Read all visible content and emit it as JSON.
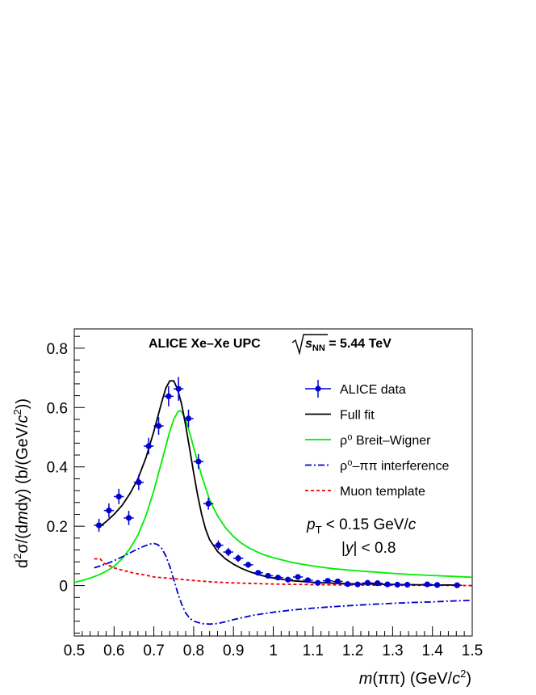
{
  "chart_data": {
    "type": "line",
    "title": {
      "main": "ALICE Xe–Xe UPC",
      "energy_prefix": "s",
      "energy_sub": "NN",
      "energy_value": " = 5.44 TeV"
    },
    "ylabel": {
      "d": "d",
      "sup2": "2",
      "sigma": "σ/(d",
      "m": "m",
      "dy": "dy) (b/(GeV/",
      "c": "c",
      "sup2b": "2",
      "close": "))"
    },
    "xlabel": {
      "m": "m",
      "pipi": "(ππ) (GeV/",
      "c": "c",
      "sup2": "2",
      "close": ")"
    },
    "xlim": [
      0.5,
      1.5
    ],
    "ylim": [
      -0.17,
      0.865
    ],
    "xticks": [
      0.5,
      0.6,
      0.7,
      0.8,
      0.9,
      1.0,
      1.1,
      1.2,
      1.3,
      1.4,
      1.5
    ],
    "xtick_labels": [
      "0.5",
      "0.6",
      "0.7",
      "0.8",
      "0.9",
      "1",
      "1.1",
      "1.2",
      "1.3",
      "1.4",
      "1.5"
    ],
    "yticks": [
      0,
      0.2,
      0.4,
      0.6,
      0.8
    ],
    "ytick_labels": [
      "0",
      "0.2",
      "0.4",
      "0.6",
      "0.8"
    ],
    "legend_position": "top-right",
    "legend": [
      {
        "label": "ALICE data",
        "style": "marker",
        "color": "#0000cc"
      },
      {
        "label": "Full fit",
        "style": "solid",
        "color": "#000000"
      },
      {
        "label": "ρ⁰ Breit–Wigner",
        "style": "solid",
        "color": "#00ee00"
      },
      {
        "label": "ρ⁰–ππ interference",
        "style": "dashdot",
        "color": "#0000cc"
      },
      {
        "label": "Muon template",
        "style": "dashed",
        "color": "#ee0000"
      }
    ],
    "annotations": {
      "pt_p": "p",
      "pt_sub": "T",
      "pt_rest": " < 0.15 GeV/",
      "pt_c": "c",
      "y_bar1": "|",
      "y_var": "y",
      "y_rest": "| < 0.8"
    },
    "data_points": [
      {
        "x": 0.562,
        "y": 0.203,
        "err": 0.022
      },
      {
        "x": 0.587,
        "y": 0.253,
        "err": 0.024
      },
      {
        "x": 0.612,
        "y": 0.3,
        "err": 0.026
      },
      {
        "x": 0.637,
        "y": 0.228,
        "err": 0.024
      },
      {
        "x": 0.662,
        "y": 0.348,
        "err": 0.026
      },
      {
        "x": 0.687,
        "y": 0.47,
        "err": 0.028
      },
      {
        "x": 0.712,
        "y": 0.538,
        "err": 0.03
      },
      {
        "x": 0.737,
        "y": 0.638,
        "err": 0.034
      },
      {
        "x": 0.762,
        "y": 0.663,
        "err": 0.04
      },
      {
        "x": 0.787,
        "y": 0.563,
        "err": 0.03
      },
      {
        "x": 0.812,
        "y": 0.418,
        "err": 0.025
      },
      {
        "x": 0.837,
        "y": 0.276,
        "err": 0.02
      },
      {
        "x": 0.862,
        "y": 0.136,
        "err": 0.016
      },
      {
        "x": 0.887,
        "y": 0.113,
        "err": 0.014
      },
      {
        "x": 0.912,
        "y": 0.092,
        "err": 0.012
      },
      {
        "x": 0.937,
        "y": 0.07,
        "err": 0.01
      },
      {
        "x": 0.962,
        "y": 0.043,
        "err": 0.008
      },
      {
        "x": 0.987,
        "y": 0.033,
        "err": 0.007
      },
      {
        "x": 1.012,
        "y": 0.027,
        "err": 0.007
      },
      {
        "x": 1.037,
        "y": 0.02,
        "err": 0.006
      },
      {
        "x": 1.062,
        "y": 0.029,
        "err": 0.006
      },
      {
        "x": 1.087,
        "y": 0.018,
        "err": 0.005
      },
      {
        "x": 1.112,
        "y": 0.009,
        "err": 0.005
      },
      {
        "x": 1.137,
        "y": 0.016,
        "err": 0.005
      },
      {
        "x": 1.162,
        "y": 0.014,
        "err": 0.005
      },
      {
        "x": 1.187,
        "y": 0.005,
        "err": 0.004
      },
      {
        "x": 1.212,
        "y": 0.004,
        "err": 0.004
      },
      {
        "x": 1.237,
        "y": 0.009,
        "err": 0.004
      },
      {
        "x": 1.262,
        "y": 0.008,
        "err": 0.004
      },
      {
        "x": 1.287,
        "y": 0.004,
        "err": 0.004
      },
      {
        "x": 1.312,
        "y": 0.003,
        "err": 0.004
      },
      {
        "x": 1.337,
        "y": 0.003,
        "err": 0.004
      },
      {
        "x": 1.387,
        "y": 0.004,
        "err": 0.004
      },
      {
        "x": 1.412,
        "y": 0.002,
        "err": 0.003
      },
      {
        "x": 1.462,
        "y": 0.001,
        "err": 0.003
      }
    ],
    "curves": {
      "full_fit": [
        [
          0.56,
          0.195
        ],
        [
          0.58,
          0.215
        ],
        [
          0.6,
          0.24
        ],
        [
          0.62,
          0.27
        ],
        [
          0.64,
          0.31
        ],
        [
          0.66,
          0.36
        ],
        [
          0.68,
          0.43
        ],
        [
          0.7,
          0.52
        ],
        [
          0.72,
          0.62
        ],
        [
          0.73,
          0.665
        ],
        [
          0.74,
          0.69
        ],
        [
          0.75,
          0.69
        ],
        [
          0.76,
          0.66
        ],
        [
          0.77,
          0.61
        ],
        [
          0.78,
          0.54
        ],
        [
          0.79,
          0.46
        ],
        [
          0.8,
          0.38
        ],
        [
          0.81,
          0.305
        ],
        [
          0.82,
          0.24
        ],
        [
          0.83,
          0.19
        ],
        [
          0.84,
          0.155
        ],
        [
          0.86,
          0.115
        ],
        [
          0.88,
          0.09
        ],
        [
          0.9,
          0.072
        ],
        [
          0.92,
          0.058
        ],
        [
          0.94,
          0.047
        ],
        [
          0.96,
          0.038
        ],
        [
          0.98,
          0.031
        ],
        [
          1.0,
          0.025
        ],
        [
          1.05,
          0.016
        ],
        [
          1.1,
          0.011
        ],
        [
          1.15,
          0.008
        ],
        [
          1.2,
          0.006
        ],
        [
          1.25,
          0.005
        ],
        [
          1.3,
          0.004
        ],
        [
          1.35,
          0.003
        ],
        [
          1.4,
          0.002
        ],
        [
          1.45,
          0.002
        ],
        [
          1.47,
          0.002
        ]
      ],
      "breit_wigner": [
        [
          0.5,
          0.01
        ],
        [
          0.52,
          0.017
        ],
        [
          0.54,
          0.025
        ],
        [
          0.56,
          0.035
        ],
        [
          0.58,
          0.048
        ],
        [
          0.6,
          0.065
        ],
        [
          0.62,
          0.09
        ],
        [
          0.64,
          0.125
        ],
        [
          0.66,
          0.17
        ],
        [
          0.68,
          0.235
        ],
        [
          0.7,
          0.32
        ],
        [
          0.72,
          0.42
        ],
        [
          0.73,
          0.47
        ],
        [
          0.74,
          0.52
        ],
        [
          0.75,
          0.56
        ],
        [
          0.76,
          0.585
        ],
        [
          0.765,
          0.59
        ],
        [
          0.77,
          0.585
        ],
        [
          0.78,
          0.56
        ],
        [
          0.79,
          0.515
        ],
        [
          0.8,
          0.465
        ],
        [
          0.82,
          0.37
        ],
        [
          0.84,
          0.29
        ],
        [
          0.86,
          0.235
        ],
        [
          0.88,
          0.195
        ],
        [
          0.9,
          0.165
        ],
        [
          0.92,
          0.143
        ],
        [
          0.94,
          0.126
        ],
        [
          0.96,
          0.113
        ],
        [
          0.98,
          0.102
        ],
        [
          1.0,
          0.094
        ],
        [
          1.05,
          0.077
        ],
        [
          1.1,
          0.066
        ],
        [
          1.15,
          0.057
        ],
        [
          1.2,
          0.051
        ],
        [
          1.25,
          0.046
        ],
        [
          1.3,
          0.041
        ],
        [
          1.35,
          0.037
        ],
        [
          1.4,
          0.034
        ],
        [
          1.45,
          0.031
        ],
        [
          1.5,
          0.028
        ]
      ],
      "interference": [
        [
          0.55,
          0.06
        ],
        [
          0.57,
          0.068
        ],
        [
          0.59,
          0.078
        ],
        [
          0.61,
          0.09
        ],
        [
          0.63,
          0.103
        ],
        [
          0.65,
          0.117
        ],
        [
          0.67,
          0.13
        ],
        [
          0.69,
          0.14
        ],
        [
          0.7,
          0.142
        ],
        [
          0.71,
          0.138
        ],
        [
          0.72,
          0.125
        ],
        [
          0.73,
          0.1
        ],
        [
          0.74,
          0.065
        ],
        [
          0.75,
          0.02
        ],
        [
          0.76,
          -0.025
        ],
        [
          0.77,
          -0.063
        ],
        [
          0.78,
          -0.092
        ],
        [
          0.79,
          -0.11
        ],
        [
          0.8,
          -0.12
        ],
        [
          0.82,
          -0.128
        ],
        [
          0.84,
          -0.13
        ],
        [
          0.86,
          -0.128
        ],
        [
          0.88,
          -0.122
        ],
        [
          0.9,
          -0.115
        ],
        [
          0.95,
          -0.1
        ],
        [
          1.0,
          -0.09
        ],
        [
          1.05,
          -0.082
        ],
        [
          1.1,
          -0.076
        ],
        [
          1.15,
          -0.071
        ],
        [
          1.2,
          -0.067
        ],
        [
          1.25,
          -0.063
        ],
        [
          1.3,
          -0.06
        ],
        [
          1.35,
          -0.057
        ],
        [
          1.4,
          -0.055
        ],
        [
          1.45,
          -0.052
        ],
        [
          1.5,
          -0.05
        ]
      ],
      "muon": [
        [
          0.55,
          0.09
        ],
        [
          0.565,
          0.09
        ],
        [
          0.575,
          0.075
        ],
        [
          0.6,
          0.06
        ],
        [
          0.62,
          0.052
        ],
        [
          0.65,
          0.042
        ],
        [
          0.68,
          0.035
        ],
        [
          0.7,
          0.029
        ],
        [
          0.75,
          0.023
        ],
        [
          0.8,
          0.017
        ],
        [
          0.85,
          0.012
        ],
        [
          0.9,
          0.009
        ],
        [
          0.95,
          0.007
        ],
        [
          1.0,
          0.005
        ],
        [
          1.05,
          0.004
        ],
        [
          1.1,
          0.003
        ],
        [
          1.2,
          0.002
        ],
        [
          1.3,
          0.001
        ],
        [
          1.4,
          0.001
        ],
        [
          1.5,
          0.0
        ]
      ]
    }
  }
}
